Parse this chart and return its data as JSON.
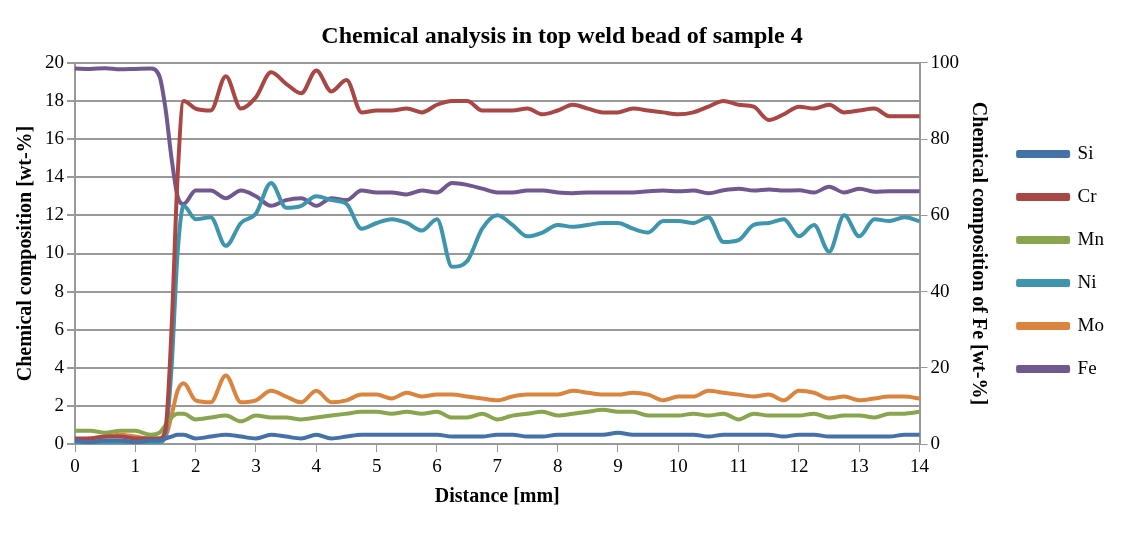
{
  "chart_data": {
    "type": "line",
    "title": "Chemical analysis in top weld bead of sample 4",
    "xlabel": "Distance [mm]",
    "ylabel": "Chemical composition [wt-%]",
    "y2label": "Chemical composition of Fe [wt-%]",
    "x": [
      0,
      0.25,
      0.5,
      0.75,
      1,
      1.25,
      1.4,
      1.5,
      1.6,
      1.7,
      1.8,
      2,
      2.25,
      2.5,
      2.75,
      3,
      3.25,
      3.5,
      3.75,
      4,
      4.25,
      4.5,
      4.75,
      5,
      5.25,
      5.5,
      5.75,
      6,
      6.25,
      6.5,
      6.75,
      7,
      7.25,
      7.5,
      7.75,
      8,
      8.25,
      8.5,
      8.75,
      9,
      9.25,
      9.5,
      9.75,
      10,
      10.25,
      10.5,
      10.75,
      11,
      11.25,
      11.5,
      11.75,
      12,
      12.25,
      12.5,
      12.75,
      13,
      13.25,
      13.5,
      13.75,
      14
    ],
    "series": [
      {
        "name": "Si",
        "color": "#4472a8",
        "values": [
          0.2,
          0.1,
          0.2,
          0.2,
          0.1,
          0.2,
          0.2,
          0.3,
          0.4,
          0.5,
          0.5,
          0.3,
          0.4,
          0.5,
          0.4,
          0.3,
          0.5,
          0.4,
          0.3,
          0.5,
          0.3,
          0.4,
          0.5,
          0.5,
          0.5,
          0.5,
          0.5,
          0.5,
          0.4,
          0.4,
          0.4,
          0.5,
          0.5,
          0.4,
          0.4,
          0.5,
          0.5,
          0.5,
          0.5,
          0.6,
          0.5,
          0.5,
          0.5,
          0.5,
          0.5,
          0.4,
          0.5,
          0.5,
          0.5,
          0.5,
          0.4,
          0.5,
          0.5,
          0.4,
          0.4,
          0.4,
          0.4,
          0.4,
          0.5,
          0.5
        ]
      },
      {
        "name": "Cr",
        "color": "#aa4643",
        "values": [
          0.3,
          0.3,
          0.4,
          0.4,
          0.3,
          0.3,
          0.3,
          0.8,
          6,
          14,
          18,
          17.6,
          17.5,
          19.3,
          17.6,
          18.2,
          19.5,
          18.9,
          18.4,
          19.6,
          18.5,
          19.1,
          17.4,
          17.5,
          17.5,
          17.6,
          17.4,
          17.8,
          18,
          18,
          17.5,
          17.5,
          17.5,
          17.6,
          17.3,
          17.5,
          17.8,
          17.6,
          17.4,
          17.4,
          17.6,
          17.5,
          17.4,
          17.3,
          17.4,
          17.7,
          18,
          17.8,
          17.7,
          17,
          17.3,
          17.7,
          17.6,
          17.8,
          17.4,
          17.5,
          17.6,
          17.2,
          17.2,
          17.2
        ]
      },
      {
        "name": "Mn",
        "color": "#89a54e",
        "values": [
          0.7,
          0.7,
          0.6,
          0.7,
          0.7,
          0.5,
          0.6,
          1,
          1.4,
          1.6,
          1.6,
          1.3,
          1.4,
          1.5,
          1.2,
          1.5,
          1.4,
          1.4,
          1.3,
          1.4,
          1.5,
          1.6,
          1.7,
          1.7,
          1.6,
          1.7,
          1.6,
          1.7,
          1.4,
          1.4,
          1.6,
          1.3,
          1.5,
          1.6,
          1.7,
          1.5,
          1.6,
          1.7,
          1.8,
          1.7,
          1.7,
          1.5,
          1.5,
          1.5,
          1.6,
          1.5,
          1.6,
          1.3,
          1.6,
          1.5,
          1.5,
          1.5,
          1.6,
          1.4,
          1.5,
          1.5,
          1.4,
          1.6,
          1.6,
          1.7
        ]
      },
      {
        "name": "Ni",
        "color": "#3d96ae",
        "values": [
          0.1,
          0.1,
          0.1,
          0.1,
          0.1,
          0.1,
          0.1,
          0.5,
          4,
          10,
          12.5,
          11.8,
          11.9,
          10.4,
          11.6,
          12.1,
          13.7,
          12.4,
          12.5,
          13,
          12.8,
          12.6,
          11.3,
          11.6,
          11.8,
          11.6,
          11.2,
          11.8,
          9.3,
          9.6,
          11.3,
          12,
          11.5,
          10.9,
          11.1,
          11.5,
          11.4,
          11.5,
          11.6,
          11.6,
          11.3,
          11.1,
          11.7,
          11.7,
          11.6,
          11.9,
          10.6,
          10.7,
          11.5,
          11.6,
          11.8,
          10.9,
          11.5,
          10.1,
          12,
          10.9,
          11.8,
          11.7,
          11.9,
          11.7
        ]
      },
      {
        "name": "Mo",
        "color": "#db843d",
        "values": [
          0.2,
          0.3,
          0.4,
          0.5,
          0.4,
          0.3,
          0.3,
          0.4,
          1.5,
          2.8,
          3.2,
          2.3,
          2.2,
          3.6,
          2.2,
          2.3,
          2.8,
          2.5,
          2.2,
          2.8,
          2.2,
          2.3,
          2.6,
          2.6,
          2.4,
          2.7,
          2.5,
          2.6,
          2.6,
          2.5,
          2.4,
          2.3,
          2.5,
          2.6,
          2.6,
          2.6,
          2.8,
          2.7,
          2.6,
          2.6,
          2.7,
          2.6,
          2.3,
          2.5,
          2.5,
          2.8,
          2.7,
          2.6,
          2.5,
          2.6,
          2.3,
          2.8,
          2.7,
          2.4,
          2.5,
          2.3,
          2.4,
          2.5,
          2.5,
          2.4
        ]
      },
      {
        "name": "Fe",
        "color": "#71588f",
        "axis": "y2",
        "values": [
          98.5,
          98.4,
          98.6,
          98.3,
          98.4,
          98.5,
          96.5,
          88,
          75,
          65,
          63,
          66.5,
          66.5,
          64.5,
          66.5,
          65,
          62.5,
          64,
          64.5,
          62.5,
          64.5,
          64,
          66.5,
          66,
          66,
          65.5,
          66.5,
          66,
          68.5,
          68,
          67,
          66,
          66,
          66.5,
          66.5,
          66,
          65.8,
          66,
          66,
          66,
          66,
          66.3,
          66.5,
          66.3,
          66.5,
          65.8,
          66.6,
          67,
          66.5,
          66.8,
          66.5,
          66.6,
          66,
          67.5,
          66,
          67,
          66.2,
          66.3,
          66.3,
          66.3
        ]
      }
    ],
    "xlim": [
      0,
      14
    ],
    "xticks": [
      0,
      1,
      2,
      3,
      4,
      5,
      6,
      7,
      8,
      9,
      10,
      11,
      12,
      13,
      14
    ],
    "ylim": [
      0,
      20
    ],
    "yticks": [
      0,
      2,
      4,
      6,
      8,
      10,
      12,
      14,
      16,
      18,
      20
    ],
    "y2lim": [
      0,
      100
    ],
    "y2ticks": [
      0,
      20,
      40,
      60,
      80,
      100
    ],
    "grid": "y",
    "legend": "right",
    "marker": "none",
    "line_style": "solid"
  }
}
